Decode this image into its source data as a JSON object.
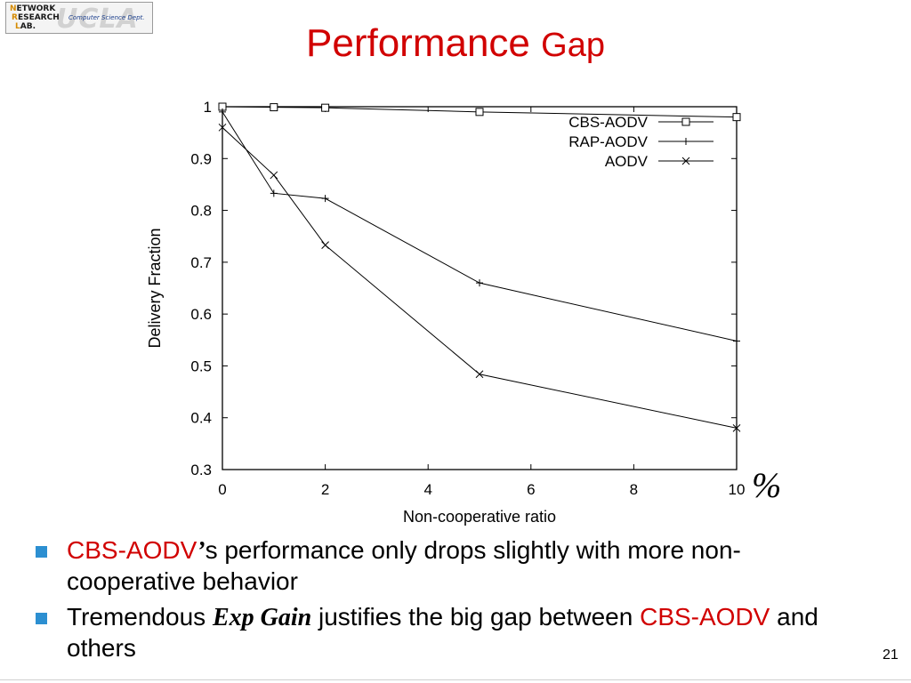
{
  "logo": {
    "line1_first": "N",
    "line1_rest": "ETWORK",
    "line2_first": "R",
    "line2_rest": "ESEARCH",
    "line3_first": "L",
    "line3_rest": "AB.",
    "dept": "Computer Science Dept.",
    "watermark": "UCLA"
  },
  "slide": {
    "title_main": "Performance",
    "title_tail": "Gap",
    "percent_mark": "%",
    "page_number": "21"
  },
  "bullets": [
    {
      "highlight": "CBS-AODV",
      "apostrophe": "’",
      "rest": "s performance only drops slightly with more non-cooperative behavior"
    },
    {
      "lead": "Tremendous",
      "emphasis": "Exp Gain",
      "middle": "justifies the big gap between",
      "highlight": "CBS-AODV",
      "tail": "and others"
    }
  ],
  "colors": {
    "title": "#d10000",
    "bullet_marker": "#2c8fd1"
  },
  "chart_data": {
    "type": "line",
    "xlabel": "Non-cooperative ratio",
    "ylabel": "Delivery Fraction",
    "xlim": [
      0,
      10
    ],
    "ylim": [
      0.3,
      1
    ],
    "xticks": [
      "0",
      "2",
      "4",
      "6",
      "8",
      "10"
    ],
    "yticks": [
      "0.3",
      "0.4",
      "0.5",
      "0.6",
      "0.7",
      "0.8",
      "0.9",
      "1"
    ],
    "grid": false,
    "legend_position": "top-right",
    "series": [
      {
        "name": "CBS-AODV",
        "marker": "square",
        "x": [
          0,
          1,
          2,
          5,
          10
        ],
        "y": [
          1.0,
          0.999,
          0.998,
          0.99,
          0.98
        ]
      },
      {
        "name": "RAP-AODV",
        "marker": "plus",
        "x": [
          0,
          1,
          2,
          5,
          10
        ],
        "y": [
          0.99,
          0.833,
          0.823,
          0.66,
          0.548
        ]
      },
      {
        "name": "AODV",
        "marker": "cross",
        "x": [
          0,
          1,
          2,
          5,
          10
        ],
        "y": [
          0.96,
          0.868,
          0.733,
          0.484,
          0.38
        ]
      }
    ]
  }
}
